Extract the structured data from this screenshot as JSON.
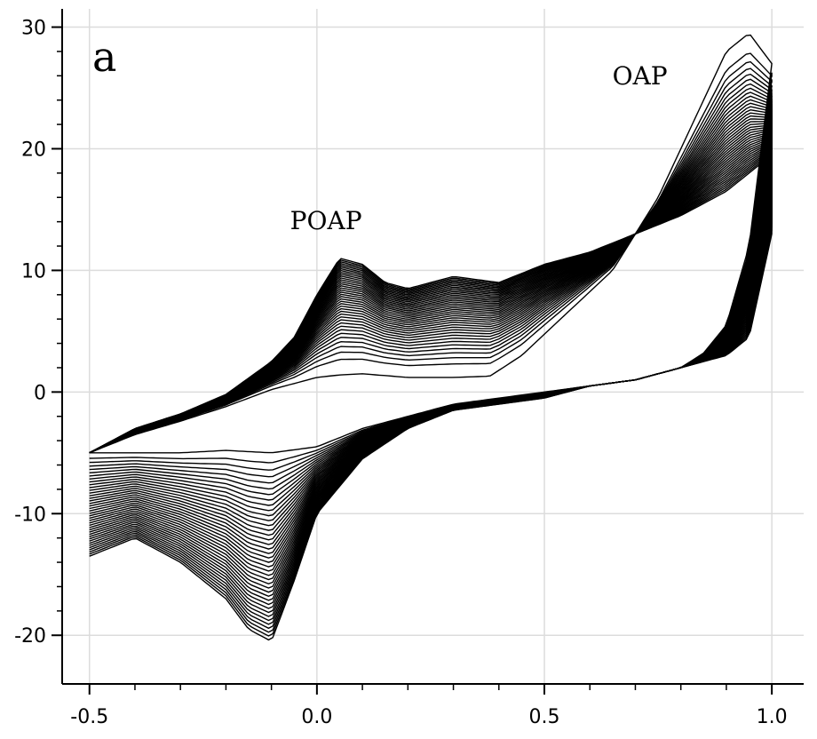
{
  "chart_data": {
    "type": "line",
    "title": "",
    "xlabel": "",
    "ylabel": "",
    "xlim": [
      -0.56,
      1.07
    ],
    "ylim": [
      -24,
      31.5
    ],
    "grid": true,
    "x_ticks": [
      -0.5,
      0.0,
      0.5,
      1.0
    ],
    "x_tick_labels": [
      "-0.5",
      "0.0",
      "0.5",
      "1.0"
    ],
    "y_ticks": [
      -20,
      -10,
      0,
      10,
      20,
      30
    ],
    "y_tick_labels": [
      "-20",
      "-10",
      "0",
      "10",
      "20",
      "30"
    ],
    "panel_label": "a",
    "annotations": [
      {
        "text": "POAP",
        "x": 0.02,
        "y": 13.4
      },
      {
        "text": "OAP",
        "x": 0.71,
        "y": 25.3
      }
    ],
    "cycles": 40,
    "series": [
      {
        "role": "first-cycle",
        "forward": {
          "x": [
            -0.5,
            -0.4,
            -0.3,
            -0.2,
            -0.1,
            0.0,
            0.05,
            0.1,
            0.2,
            0.3,
            0.38,
            0.45,
            0.55,
            0.65,
            0.75,
            0.85,
            0.9,
            0.95,
            1.0
          ],
          "y": [
            -5.0,
            -3.5,
            -2.4,
            -1.2,
            0.2,
            1.2,
            1.4,
            1.5,
            1.2,
            1.2,
            1.3,
            3.0,
            6.5,
            10.0,
            16.0,
            24.0,
            28.0,
            29.5,
            27.0
          ]
        },
        "reverse": {
          "x": [
            1.0,
            0.95,
            0.9,
            0.85,
            0.8,
            0.7,
            0.6,
            0.5,
            0.4,
            0.3,
            0.2,
            0.1,
            0.0,
            -0.1,
            -0.2,
            -0.3,
            -0.4,
            -0.5
          ],
          "y": [
            27.0,
            12.0,
            5.5,
            3.2,
            2.0,
            1.0,
            0.5,
            0.0,
            -0.5,
            -1.0,
            -2.0,
            -3.0,
            -4.5,
            -5.0,
            -4.8,
            -5.0,
            -5.0,
            -5.0
          ]
        }
      },
      {
        "role": "last-cycle",
        "forward": {
          "x": [
            -0.5,
            -0.4,
            -0.3,
            -0.2,
            -0.1,
            -0.05,
            0.0,
            0.05,
            0.1,
            0.15,
            0.2,
            0.3,
            0.4,
            0.5,
            0.6,
            0.7,
            0.8,
            0.9,
            1.0
          ],
          "y": [
            -5.0,
            -3.0,
            -1.8,
            -0.2,
            2.5,
            4.5,
            8.0,
            11.0,
            10.5,
            9.0,
            8.5,
            9.5,
            9.0,
            10.5,
            11.5,
            13.0,
            14.5,
            16.5,
            19.5
          ]
        },
        "reverse": {
          "x": [
            1.0,
            0.95,
            0.9,
            0.8,
            0.7,
            0.6,
            0.5,
            0.4,
            0.3,
            0.2,
            0.1,
            0.0,
            -0.05,
            -0.1,
            -0.15,
            -0.2,
            -0.3,
            -0.4,
            -0.5
          ],
          "y": [
            13.0,
            4.5,
            3.0,
            2.0,
            1.0,
            0.5,
            -0.5,
            -1.0,
            -1.5,
            -3.0,
            -5.5,
            -10.0,
            -15.5,
            -20.5,
            -19.5,
            -17.0,
            -14.0,
            -12.0,
            -13.5
          ]
        }
      }
    ]
  }
}
